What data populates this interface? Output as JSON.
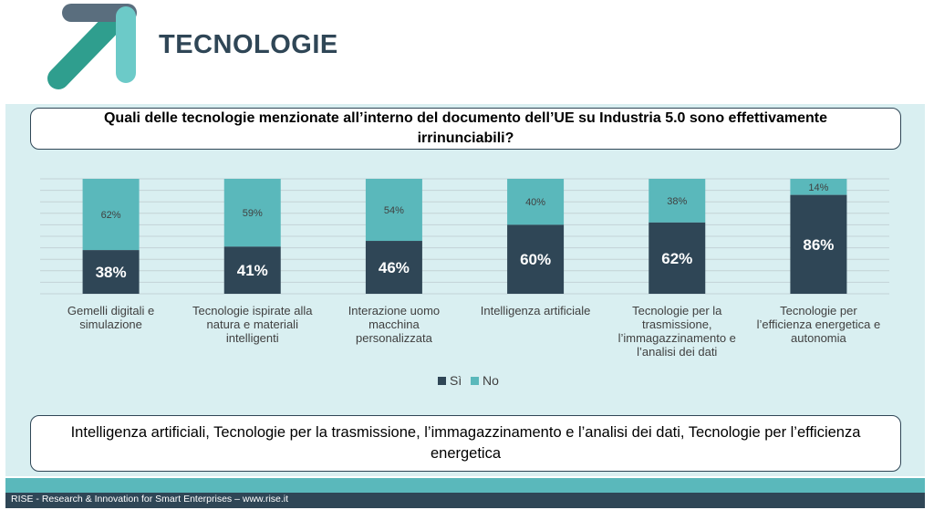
{
  "header": {
    "title": "TECNOLOGIE"
  },
  "question": "Quali delle tecnologie menzionate all’interno del documento dell’UE su Industria 5.0 sono effettivamente irrinunciabili?",
  "answer": "Intelligenza artificiali, Tecnologie per la trasmissione, l’immagazzinamento e l’analisi dei dati, Tecnologie per l’efficienza energetica",
  "footer": {
    "text": "RISE - Research & Innovation for Smart Enterprises – www.rise.it"
  },
  "colors": {
    "si": "#2f4656",
    "no": "#5ab8bb",
    "panel": "#d9eff1",
    "title": "#2f4656"
  },
  "chart_data": {
    "type": "bar",
    "stacked": true,
    "percent_stacked": true,
    "categories": [
      [
        "Gemelli digitali e",
        "simulazione"
      ],
      [
        "Tecnologie ispirate alla",
        "natura e materiali",
        "intelligenti"
      ],
      [
        "Interazione uomo",
        "macchina",
        "personalizzata"
      ],
      [
        "Intelligenza artificiale"
      ],
      [
        "Tecnologie per la",
        "trasmissione,",
        "l’immagazzinamento e",
        "l’analisi dei dati"
      ],
      [
        "Tecnologie per",
        "l’efficienza energetica e",
        "autonomia"
      ]
    ],
    "series": [
      {
        "name": "Sì",
        "values": [
          38,
          41,
          46,
          60,
          62,
          86
        ],
        "labels": [
          "38%",
          "41%",
          "46%",
          "60%",
          "62%",
          "86%"
        ]
      },
      {
        "name": "No",
        "values": [
          62,
          59,
          54,
          40,
          38,
          14
        ],
        "labels": [
          "62%",
          "59%",
          "54%",
          "40%",
          "38%",
          "14%"
        ]
      }
    ],
    "ylim": [
      0,
      100
    ],
    "grid": true,
    "legend_position": "bottom"
  }
}
